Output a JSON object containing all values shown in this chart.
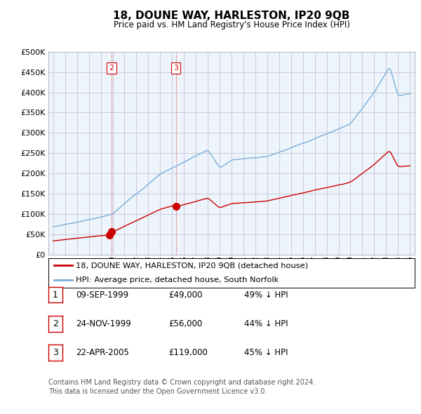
{
  "title": "18, DOUNE WAY, HARLESTON, IP20 9QB",
  "subtitle": "Price paid vs. HM Land Registry's House Price Index (HPI)",
  "legend_line1": "18, DOUNE WAY, HARLESTON, IP20 9QB (detached house)",
  "legend_line2": "HPI: Average price, detached house, South Norfolk",
  "table_rows": [
    {
      "num": "1",
      "date": "09-SEP-1999",
      "price": "£49,000",
      "hpi": "49% ↓ HPI"
    },
    {
      "num": "2",
      "date": "24-NOV-1999",
      "price": "£56,000",
      "hpi": "44% ↓ HPI"
    },
    {
      "num": "3",
      "date": "22-APR-2005",
      "price": "£119,000",
      "hpi": "45% ↓ HPI"
    }
  ],
  "footnote1": "Contains HM Land Registry data © Crown copyright and database right 2024.",
  "footnote2": "This data is licensed under the Open Government Licence v3.0.",
  "red_color": "#cc0000",
  "blue_color": "#7aaedb",
  "hpi_color": "#7aaedb",
  "grid_color": "#bbbbcc",
  "chart_bg": "#eef4fb",
  "background_color": "#ffffff",
  "sale1_year": 1999.71,
  "sale1_price": 49000,
  "sale2_year": 1999.9,
  "sale2_price": 56000,
  "sale3_year": 2005.31,
  "sale3_price": 119000,
  "ylim_max": 500000,
  "ylim_min": 0,
  "chart_labels_in_plot": [
    "2",
    "3"
  ],
  "chart_label_years": [
    1999.9,
    2005.31
  ]
}
